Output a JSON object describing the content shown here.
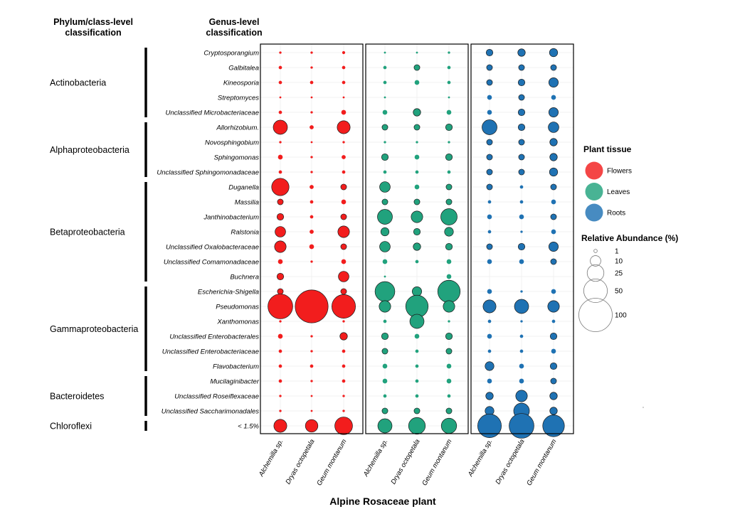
{
  "headers": {
    "phylum": [
      "Phylum/class-level",
      "classification"
    ],
    "genus": [
      "Genus-level",
      "classification"
    ]
  },
  "colors": {
    "Flowers": "#f21d1d",
    "Leaves": "#21a27d",
    "Roots": "#1f72b3"
  },
  "chart_data": {
    "type": "bubble-grid",
    "xlabel": "Alpine Rosaceae plant",
    "plants": [
      "Alchemilla sp.",
      "Dryas octopetala",
      "Geum montanum"
    ],
    "tissues": [
      "Flowers",
      "Leaves",
      "Roots"
    ],
    "phyla": [
      {
        "name": "Actinobacteria",
        "from": 0,
        "to": 4
      },
      {
        "name": "Alphaproteobacteria",
        "from": 5,
        "to": 8
      },
      {
        "name": "Betaproteobacteria",
        "from": 9,
        "to": 15
      },
      {
        "name": "Gammaproteobacteria",
        "from": 16,
        "to": 21
      },
      {
        "name": "Bacteroidetes",
        "from": 22,
        "to": 24
      },
      {
        "name": "Chloroflexi",
        "from": 25,
        "to": 25
      }
    ],
    "genera": [
      "Cryptosporangium",
      "Galbitalea",
      "Kineosporia",
      "Streptomyces",
      "Unclassified Microbacteriaceae",
      "Allorhizobium.",
      "Novosphingobium",
      "Sphingomonas",
      "Unclassified Sphingomonadaceae",
      "Duganella",
      "Massilia",
      "Janthinobacterium",
      "Ralstonia",
      "Unclassified Oxalobacteraceae",
      "Unclassified Comamonadaceae",
      "Buchnera",
      "Escherichia-Shigella",
      "Pseudomonas",
      "Xanthomonas",
      "Unclassified Enterobacterales",
      "Unclassified Enterobacteriaceae",
      "Flavobacterium",
      "Mucilaginibacter",
      "Unclassified Roseiflexaceae",
      "Unclassified Saccharimonadales",
      "< 1.5%"
    ],
    "values": {
      "Flowers": [
        [
          0.5,
          0.5,
          0.8
        ],
        [
          1,
          0.5,
          1
        ],
        [
          1,
          1,
          1
        ],
        [
          0.3,
          0.2,
          0.3
        ],
        [
          1,
          0.5,
          2
        ],
        [
          18,
          1.5,
          15
        ],
        [
          0.5,
          0.3,
          0.5
        ],
        [
          2,
          0.5,
          1.5
        ],
        [
          1,
          0.5,
          1
        ],
        [
          27,
          1.5,
          3
        ],
        [
          3,
          1,
          2
        ],
        [
          4,
          1,
          3
        ],
        [
          10,
          1.5,
          12
        ],
        [
          12,
          2,
          3
        ],
        [
          2,
          0.5,
          2
        ],
        [
          4,
          0,
          10
        ],
        [
          3,
          1,
          3
        ],
        [
          55,
          97,
          50
        ],
        [
          0.5,
          0,
          0.5
        ],
        [
          2,
          0.5,
          5
        ],
        [
          1,
          0.5,
          1
        ],
        [
          1,
          1,
          1
        ],
        [
          1,
          0.5,
          1
        ],
        [
          0.5,
          0.3,
          0.5
        ],
        [
          0.5,
          0.2,
          0.5
        ],
        [
          15,
          14,
          28
        ]
      ],
      "Leaves": [
        [
          0.3,
          0.3,
          0.5
        ],
        [
          1,
          3,
          1
        ],
        [
          1,
          2,
          1
        ],
        [
          0.3,
          0,
          0.3
        ],
        [
          2,
          5,
          2
        ],
        [
          3,
          3,
          4
        ],
        [
          0.5,
          0.5,
          0.5
        ],
        [
          4,
          2,
          4
        ],
        [
          1,
          1,
          1
        ],
        [
          10,
          2,
          3
        ],
        [
          3,
          3,
          3
        ],
        [
          20,
          12,
          24
        ],
        [
          6,
          4,
          7
        ],
        [
          10,
          5,
          4
        ],
        [
          2,
          1,
          2
        ],
        [
          0.3,
          0,
          2
        ],
        [
          35,
          8,
          45
        ],
        [
          12,
          45,
          12
        ],
        [
          1,
          18,
          0.5
        ],
        [
          4,
          2,
          4
        ],
        [
          3,
          1,
          3
        ],
        [
          2,
          1,
          2
        ],
        [
          2,
          1,
          2
        ],
        [
          1,
          1,
          1
        ],
        [
          3,
          3,
          3
        ],
        [
          18,
          25,
          21
        ]
      ],
      "Roots": [
        [
          4,
          5,
          6
        ],
        [
          3,
          3,
          3
        ],
        [
          3,
          4,
          8
        ],
        [
          2,
          3,
          2
        ],
        [
          2,
          4,
          8
        ],
        [
          20,
          4,
          10
        ],
        [
          3,
          3,
          5
        ],
        [
          3,
          3,
          5
        ],
        [
          3,
          3,
          6
        ],
        [
          3,
          1,
          3
        ],
        [
          1,
          1,
          2
        ],
        [
          2,
          2,
          3
        ],
        [
          1,
          0.5,
          2
        ],
        [
          3,
          4,
          8
        ],
        [
          2,
          2,
          3
        ],
        [
          0,
          0,
          0
        ],
        [
          2,
          0.5,
          2
        ],
        [
          15,
          18,
          12
        ],
        [
          1,
          0.5,
          1
        ],
        [
          2,
          1,
          4
        ],
        [
          1,
          1,
          2
        ],
        [
          7,
          2,
          4
        ],
        [
          2,
          2,
          3
        ],
        [
          5,
          12,
          5
        ],
        [
          7,
          22,
          5
        ],
        [
          50,
          55,
          42
        ]
      ]
    },
    "legend": {
      "tissue_title": "Plant tissue",
      "size_title": "Relative Abundance (%)",
      "sizes": [
        1,
        10,
        25,
        50,
        100
      ]
    }
  }
}
